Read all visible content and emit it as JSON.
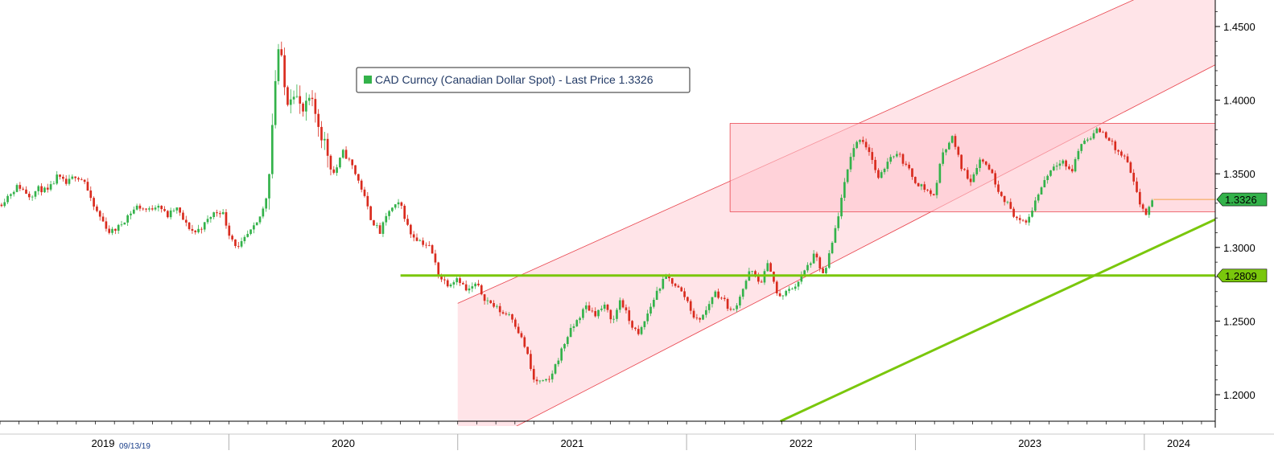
{
  "chart_data": {
    "type": "candlestick",
    "legend": {
      "label": "CAD Curncy (Canadian Dollar Spot) - Last Price 1.3326",
      "swatch_color": "#33b24a",
      "placement": "top-center"
    },
    "y_axis": {
      "side": "right",
      "ylim": [
        1.182,
        1.468
      ],
      "ticks": [
        "1.4500",
        "1.4000",
        "1.3500",
        "1.3000",
        "1.2500",
        "1.2000"
      ],
      "tick_values": [
        1.45,
        1.4,
        1.35,
        1.3,
        1.25,
        1.2
      ]
    },
    "x_axis": {
      "year_labels": [
        "2019",
        "2020",
        "2021",
        "2022",
        "2023",
        "2024"
      ],
      "year_label_positions": [
        2019.45,
        2020.5,
        2021.5,
        2022.5,
        2023.5,
        2024.15
      ],
      "year_boundaries": [
        2020.0,
        2021.0,
        2022.0,
        2023.0,
        2024.0
      ],
      "date_label": "09/13/19",
      "xlim": [
        2019.0,
        2024.31
      ]
    },
    "last_price": {
      "label": "1.3326",
      "value": 1.3326,
      "color": "#33b24a"
    },
    "horizontal_line": {
      "label": "1.2809",
      "value": 1.2809,
      "color": "#7ac70c",
      "x_start": 2020.75
    },
    "trend_line": {
      "color": "#7ac70c",
      "points": [
        [
          2022.41,
          1.182
        ],
        [
          2024.31,
          1.319
        ]
      ]
    },
    "channel": {
      "color": "#e8434c",
      "fill": "#ffd6dc",
      "upper": [
        [
          2021.0,
          1.262
        ],
        [
          2024.31,
          1.493
        ]
      ],
      "lower": [
        [
          2021.0,
          1.158
        ],
        [
          2024.31,
          1.424
        ]
      ]
    },
    "range_box": {
      "color": "#e8434c",
      "fill": "#ffc6ce",
      "x_start": 2022.19,
      "high": 1.3843,
      "low": 1.3242
    },
    "series": {
      "up_color": "#33b24a",
      "down_color": "#d92b1e",
      "close": [
        [
          2019.0,
          1.329
        ],
        [
          2019.04,
          1.336
        ],
        [
          2019.08,
          1.342
        ],
        [
          2019.13,
          1.335
        ],
        [
          2019.17,
          1.34
        ],
        [
          2019.21,
          1.338
        ],
        [
          2019.25,
          1.348
        ],
        [
          2019.29,
          1.343
        ],
        [
          2019.33,
          1.349
        ],
        [
          2019.37,
          1.345
        ],
        [
          2019.4,
          1.33
        ],
        [
          2019.44,
          1.32
        ],
        [
          2019.48,
          1.31
        ],
        [
          2019.52,
          1.314
        ],
        [
          2019.56,
          1.322
        ],
        [
          2019.6,
          1.328
        ],
        [
          2019.65,
          1.325
        ],
        [
          2019.69,
          1.33
        ],
        [
          2019.73,
          1.321
        ],
        [
          2019.77,
          1.327
        ],
        [
          2019.81,
          1.316
        ],
        [
          2019.85,
          1.31
        ],
        [
          2019.89,
          1.315
        ],
        [
          2019.93,
          1.323
        ],
        [
          2019.97,
          1.325
        ],
        [
          2020.0,
          1.31
        ],
        [
          2020.04,
          1.299
        ],
        [
          2020.08,
          1.308
        ],
        [
          2020.12,
          1.315
        ],
        [
          2020.16,
          1.33
        ],
        [
          2020.18,
          1.36
        ],
        [
          2020.2,
          1.41
        ],
        [
          2020.22,
          1.44
        ],
        [
          2020.24,
          1.41
        ],
        [
          2020.26,
          1.4
        ],
        [
          2020.28,
          1.41
        ],
        [
          2020.31,
          1.395
        ],
        [
          2020.33,
          1.39
        ],
        [
          2020.35,
          1.4
        ],
        [
          2020.38,
          1.39
        ],
        [
          2020.42,
          1.37
        ],
        [
          2020.46,
          1.35
        ],
        [
          2020.5,
          1.365
        ],
        [
          2020.54,
          1.355
        ],
        [
          2020.58,
          1.34
        ],
        [
          2020.62,
          1.32
        ],
        [
          2020.66,
          1.31
        ],
        [
          2020.7,
          1.325
        ],
        [
          2020.75,
          1.33
        ],
        [
          2020.79,
          1.31
        ],
        [
          2020.83,
          1.305
        ],
        [
          2020.88,
          1.3
        ],
        [
          2020.92,
          1.28
        ],
        [
          2020.96,
          1.275
        ],
        [
          2021.0,
          1.28
        ],
        [
          2021.04,
          1.27
        ],
        [
          2021.08,
          1.275
        ],
        [
          2021.12,
          1.265
        ],
        [
          2021.16,
          1.26
        ],
        [
          2021.2,
          1.255
        ],
        [
          2021.23,
          1.255
        ],
        [
          2021.26,
          1.245
        ],
        [
          2021.3,
          1.23
        ],
        [
          2021.33,
          1.21
        ],
        [
          2021.37,
          1.208
        ],
        [
          2021.4,
          1.21
        ],
        [
          2021.44,
          1.225
        ],
        [
          2021.48,
          1.24
        ],
        [
          2021.52,
          1.25
        ],
        [
          2021.56,
          1.26
        ],
        [
          2021.6,
          1.255
        ],
        [
          2021.64,
          1.26
        ],
        [
          2021.68,
          1.25
        ],
        [
          2021.71,
          1.265
        ],
        [
          2021.75,
          1.25
        ],
        [
          2021.79,
          1.24
        ],
        [
          2021.83,
          1.255
        ],
        [
          2021.87,
          1.27
        ],
        [
          2021.91,
          1.28
        ],
        [
          2021.95,
          1.275
        ],
        [
          2022.0,
          1.265
        ],
        [
          2022.04,
          1.25
        ],
        [
          2022.08,
          1.255
        ],
        [
          2022.12,
          1.27
        ],
        [
          2022.16,
          1.265
        ],
        [
          2022.2,
          1.255
        ],
        [
          2022.24,
          1.27
        ],
        [
          2022.28,
          1.285
        ],
        [
          2022.32,
          1.275
        ],
        [
          2022.36,
          1.29
        ],
        [
          2022.4,
          1.265
        ],
        [
          2022.44,
          1.27
        ],
        [
          2022.48,
          1.275
        ],
        [
          2022.52,
          1.285
        ],
        [
          2022.56,
          1.295
        ],
        [
          2022.6,
          1.28
        ],
        [
          2022.64,
          1.305
        ],
        [
          2022.68,
          1.335
        ],
        [
          2022.72,
          1.365
        ],
        [
          2022.76,
          1.375
        ],
        [
          2022.8,
          1.365
        ],
        [
          2022.84,
          1.345
        ],
        [
          2022.88,
          1.36
        ],
        [
          2022.92,
          1.365
        ],
        [
          2022.96,
          1.355
        ],
        [
          2023.0,
          1.345
        ],
        [
          2023.04,
          1.34
        ],
        [
          2023.08,
          1.335
        ],
        [
          2023.12,
          1.365
        ],
        [
          2023.16,
          1.375
        ],
        [
          2023.2,
          1.355
        ],
        [
          2023.24,
          1.345
        ],
        [
          2023.28,
          1.36
        ],
        [
          2023.32,
          1.355
        ],
        [
          2023.36,
          1.34
        ],
        [
          2023.4,
          1.33
        ],
        [
          2023.44,
          1.32
        ],
        [
          2023.48,
          1.315
        ],
        [
          2023.52,
          1.33
        ],
        [
          2023.56,
          1.345
        ],
        [
          2023.6,
          1.355
        ],
        [
          2023.64,
          1.36
        ],
        [
          2023.68,
          1.35
        ],
        [
          2023.72,
          1.37
        ],
        [
          2023.76,
          1.375
        ],
        [
          2023.8,
          1.38
        ],
        [
          2023.84,
          1.375
        ],
        [
          2023.88,
          1.365
        ],
        [
          2023.92,
          1.36
        ],
        [
          2023.95,
          1.345
        ],
        [
          2023.98,
          1.33
        ],
        [
          2024.01,
          1.322
        ],
        [
          2024.04,
          1.3326
        ]
      ]
    }
  }
}
